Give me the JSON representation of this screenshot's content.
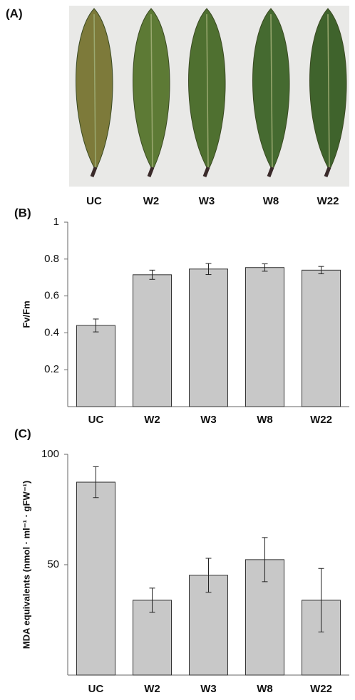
{
  "photo": {
    "panel_label": "(A)",
    "leaves": [
      "UC",
      "W2",
      "W3",
      "W8",
      "W22"
    ]
  },
  "chart_data": [
    {
      "type": "bar",
      "panel_label": "(B)",
      "y_label": "Fv/Fm",
      "categories": [
        "UC",
        "W2",
        "W3",
        "W8",
        "W22"
      ],
      "values": [
        0.44,
        0.715,
        0.746,
        0.754,
        0.74
      ],
      "errors": [
        0.035,
        0.025,
        0.03,
        0.02,
        0.02
      ],
      "color": "#c8c8c8",
      "ylim": [
        0,
        1
      ],
      "yticks": [
        0.2,
        0.4,
        0.6,
        0.8,
        1
      ]
    },
    {
      "type": "bar",
      "panel_label": "(C)",
      "y_label": "MDA equivalents (nmol · ml⁻¹ · gFW⁻¹)",
      "categories": [
        "UC",
        "W2",
        "W3",
        "W8",
        "W22"
      ],
      "values": [
        87.4,
        33.9,
        45.2,
        52.3,
        33.9
      ],
      "errors": [
        7,
        5.5,
        7.7,
        10,
        14.4
      ],
      "color": "#c8c8c8",
      "ylim": [
        0,
        100
      ],
      "yticks": [
        50,
        100
      ]
    }
  ]
}
